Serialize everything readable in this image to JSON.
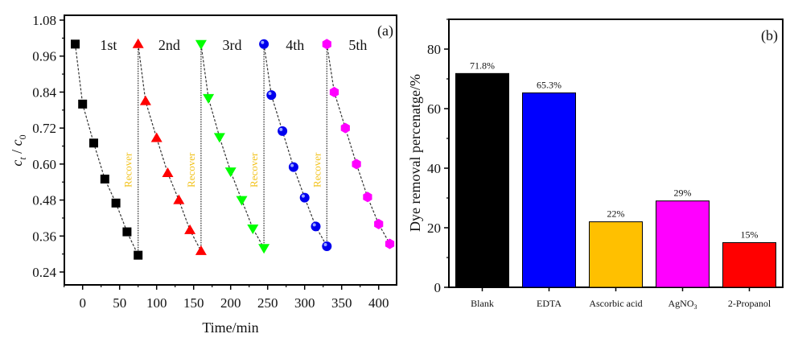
{
  "chart_data": [
    {
      "type": "scatter",
      "panel_label": "(a)",
      "title": "",
      "xlabel": "Time/min",
      "ylabel_main": "c",
      "ylabel_sub1": "t",
      "ylabel_sep": " / ",
      "ylabel_sub2": "0",
      "xlim": [
        -25,
        425
      ],
      "ylim": [
        0.2,
        1.08
      ],
      "xticks": [
        0,
        50,
        100,
        150,
        200,
        250,
        300,
        350,
        400
      ],
      "yticks": [
        "0.24",
        "0.36",
        "0.48",
        "0.60",
        "0.72",
        "0.84",
        "0.96",
        "1.08"
      ],
      "grid": false,
      "series": [
        {
          "name": "1st",
          "color": "#000000",
          "marker": "square",
          "x": [
            -10,
            0,
            15,
            30,
            45,
            60,
            75
          ],
          "y": [
            1.0,
            0.8,
            0.67,
            0.55,
            0.47,
            0.374,
            0.296
          ]
        },
        {
          "name": "2nd",
          "color": "#ff0000",
          "marker": "triangle-up",
          "x": [
            75,
            85,
            100,
            115,
            130,
            145,
            160
          ],
          "y": [
            1.0,
            0.81,
            0.687,
            0.57,
            0.48,
            0.38,
            0.31
          ]
        },
        {
          "name": "3rd",
          "color": "#00ff00",
          "marker": "triangle-down",
          "x": [
            160,
            170,
            185,
            200,
            215,
            230,
            245
          ],
          "y": [
            1.0,
            0.82,
            0.69,
            0.575,
            0.48,
            0.385,
            0.32
          ]
        },
        {
          "name": "4th",
          "color": "#0000ee",
          "marker": "sphere",
          "x": [
            245,
            255,
            270,
            285,
            300,
            315,
            330
          ],
          "y": [
            1.0,
            0.83,
            0.71,
            0.59,
            0.488,
            0.392,
            0.326
          ]
        },
        {
          "name": "5th",
          "color": "#ff00ff",
          "marker": "hexagon",
          "x": [
            330,
            340,
            355,
            370,
            385,
            400,
            415
          ],
          "y": [
            1.0,
            0.84,
            0.72,
            0.6,
            0.49,
            0.4,
            0.334
          ]
        }
      ],
      "round_labels": [
        {
          "text": "1st",
          "x": 35
        },
        {
          "text": "2nd",
          "x": 117
        },
        {
          "text": "3rd",
          "x": 202
        },
        {
          "text": "4th",
          "x": 287
        },
        {
          "text": "5th",
          "x": 372
        }
      ],
      "recover_label": "Recover",
      "recover_x": [
        62,
        147,
        232,
        317
      ],
      "recover_y": 0.58
    },
    {
      "type": "bar",
      "panel_label": "(b)",
      "title": "",
      "xlabel": "",
      "ylabel": "Dye removal percenatge/%",
      "ylim": [
        0,
        90
      ],
      "yticks": [
        0,
        20,
        40,
        60,
        80
      ],
      "grid": false,
      "categories": [
        "Blank",
        "EDTA",
        "Ascorbic acid",
        "AgNO",
        "2-Propanol"
      ],
      "category_subscripts": [
        "",
        "",
        "",
        "3",
        ""
      ],
      "values": [
        71.8,
        65.3,
        22,
        29,
        15
      ],
      "data_labels": [
        "71.8%",
        "65.3%",
        "22%",
        "29%",
        "15%"
      ],
      "colors": [
        "#000000",
        "#0000ff",
        "#ffc000",
        "#ff00ff",
        "#ff0000"
      ]
    }
  ]
}
